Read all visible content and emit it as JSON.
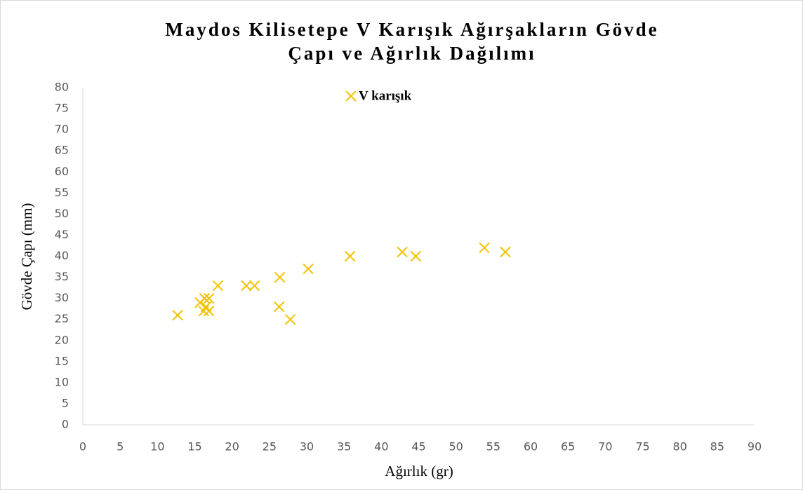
{
  "chart_data": {
    "type": "scatter",
    "title": [
      "Maydos Kilisetepe V Karışık Ağırşakların Gövde",
      "Çapı ve Ağırlık Dağılımı"
    ],
    "xlabel": "Ağırlık (gr)",
    "ylabel": "Gövde Çapı (mm)",
    "xlim": [
      0,
      90
    ],
    "xticks": [
      0,
      5,
      10,
      15,
      20,
      25,
      30,
      35,
      40,
      45,
      50,
      55,
      60,
      65,
      70,
      75,
      80,
      85,
      90
    ],
    "ylim": [
      0,
      80
    ],
    "yticks": [
      0,
      5,
      10,
      15,
      20,
      25,
      30,
      35,
      40,
      45,
      50,
      55,
      60,
      65,
      70,
      75,
      80
    ],
    "legend": "top",
    "series": [
      {
        "name": "V karışık",
        "color": "#f2c200",
        "x": [
          12.7,
          15.7,
          16.3,
          16.9,
          16.2,
          16.9,
          16.5,
          18.1,
          21.9,
          23.0,
          26.4,
          26.3,
          27.8,
          30.2,
          35.8,
          42.8,
          44.6,
          53.8,
          56.6
        ],
        "values": [
          26,
          29,
          30,
          30,
          27,
          27,
          28,
          33,
          33,
          33,
          35,
          28,
          25,
          37,
          40,
          41,
          40,
          42,
          41
        ]
      }
    ]
  }
}
